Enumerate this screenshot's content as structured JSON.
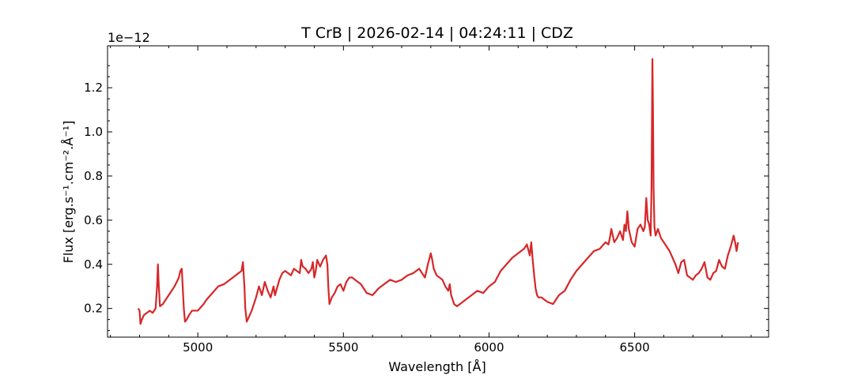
{
  "chart_data": {
    "type": "line",
    "title": "T CrB | 2026-02-14 | 04:24:11 | CDZ",
    "xlabel": "Wavelength [Å]",
    "ylabel": "Flux [erg.s⁻¹.cm⁻².Å⁻¹]",
    "y_offset_label": "1e−12",
    "y_scale": 1e-12,
    "xlim": [
      4690,
      6960
    ],
    "ylim": [
      0.07,
      1.39
    ],
    "xticks": [
      5000,
      5500,
      6000,
      6500
    ],
    "xtick_labels": [
      "5000",
      "5500",
      "6000",
      "6500"
    ],
    "yticks": [
      0.2,
      0.4,
      0.6,
      0.8,
      1.0,
      1.2
    ],
    "ytick_labels": [
      "0.2",
      "0.4",
      "0.6",
      "0.8",
      "1.0",
      "1.2"
    ],
    "grid": false,
    "series": [
      {
        "color": "#d62728",
        "x": [
          4795,
          4800,
          4803,
          4808,
          4815,
          4825,
          4835,
          4845,
          4855,
          4860,
          4863,
          4866,
          4870,
          4880,
          4900,
          4920,
          4935,
          4940,
          4945,
          4948,
          4952,
          4956,
          4962,
          4970,
          4980,
          5000,
          5020,
          5030,
          5050,
          5070,
          5090,
          5110,
          5130,
          5140,
          5150,
          5155,
          5160,
          5163,
          5168,
          5175,
          5185,
          5200,
          5210,
          5220,
          5230,
          5240,
          5250,
          5260,
          5265,
          5280,
          5290,
          5300,
          5310,
          5320,
          5330,
          5340,
          5350,
          5355,
          5360,
          5370,
          5380,
          5390,
          5395,
          5400,
          5405,
          5410,
          5420,
          5430,
          5440,
          5445,
          5448,
          5452,
          5460,
          5470,
          5480,
          5490,
          5500,
          5510,
          5520,
          5530,
          5540,
          5560,
          5580,
          5600,
          5620,
          5640,
          5660,
          5680,
          5700,
          5720,
          5740,
          5760,
          5780,
          5790,
          5800,
          5805,
          5810,
          5820,
          5830,
          5840,
          5850,
          5860,
          5865,
          5870,
          5880,
          5890,
          5900,
          5920,
          5940,
          5960,
          5980,
          6000,
          6020,
          6040,
          6060,
          6080,
          6100,
          6120,
          6130,
          6140,
          6145,
          6150,
          6155,
          6160,
          6165,
          6170,
          6180,
          6190,
          6200,
          6220,
          6240,
          6260,
          6280,
          6300,
          6320,
          6340,
          6360,
          6380,
          6400,
          6410,
          6415,
          6420,
          6430,
          6440,
          6450,
          6460,
          6465,
          6470,
          6475,
          6480,
          6490,
          6500,
          6510,
          6520,
          6530,
          6535,
          6540,
          6545,
          6550,
          6555,
          6558,
          6561,
          6563,
          6565,
          6568,
          6572,
          6580,
          6590,
          6600,
          6620,
          6640,
          6650,
          6660,
          6670,
          6680,
          6690,
          6700,
          6710,
          6720,
          6730,
          6740,
          6750,
          6760,
          6770,
          6780,
          6790,
          6800,
          6810,
          6820,
          6830,
          6840,
          6845,
          6850,
          6855
        ],
        "y": [
          0.2,
          0.19,
          0.13,
          0.15,
          0.17,
          0.18,
          0.19,
          0.18,
          0.2,
          0.3,
          0.4,
          0.3,
          0.21,
          0.22,
          0.26,
          0.3,
          0.34,
          0.37,
          0.38,
          0.3,
          0.2,
          0.14,
          0.15,
          0.17,
          0.19,
          0.19,
          0.22,
          0.24,
          0.27,
          0.3,
          0.31,
          0.33,
          0.35,
          0.36,
          0.37,
          0.41,
          0.3,
          0.2,
          0.14,
          0.16,
          0.19,
          0.25,
          0.3,
          0.26,
          0.32,
          0.28,
          0.25,
          0.3,
          0.26,
          0.33,
          0.36,
          0.37,
          0.36,
          0.35,
          0.38,
          0.37,
          0.36,
          0.42,
          0.39,
          0.38,
          0.36,
          0.38,
          0.41,
          0.34,
          0.37,
          0.42,
          0.39,
          0.42,
          0.44,
          0.4,
          0.3,
          0.22,
          0.25,
          0.27,
          0.3,
          0.31,
          0.28,
          0.32,
          0.34,
          0.34,
          0.33,
          0.31,
          0.27,
          0.26,
          0.29,
          0.31,
          0.33,
          0.32,
          0.33,
          0.35,
          0.36,
          0.38,
          0.34,
          0.4,
          0.45,
          0.42,
          0.38,
          0.35,
          0.34,
          0.33,
          0.3,
          0.28,
          0.31,
          0.26,
          0.22,
          0.21,
          0.22,
          0.24,
          0.26,
          0.28,
          0.27,
          0.3,
          0.32,
          0.37,
          0.4,
          0.43,
          0.45,
          0.47,
          0.49,
          0.44,
          0.5,
          0.42,
          0.35,
          0.29,
          0.26,
          0.25,
          0.25,
          0.24,
          0.23,
          0.22,
          0.26,
          0.28,
          0.33,
          0.37,
          0.4,
          0.43,
          0.46,
          0.47,
          0.5,
          0.49,
          0.52,
          0.56,
          0.5,
          0.52,
          0.55,
          0.51,
          0.58,
          0.55,
          0.64,
          0.56,
          0.5,
          0.48,
          0.56,
          0.58,
          0.55,
          0.57,
          0.7,
          0.6,
          0.58,
          0.53,
          0.75,
          1.33,
          1.1,
          0.75,
          0.57,
          0.53,
          0.56,
          0.52,
          0.5,
          0.46,
          0.4,
          0.36,
          0.41,
          0.42,
          0.35,
          0.34,
          0.33,
          0.35,
          0.36,
          0.38,
          0.41,
          0.34,
          0.33,
          0.36,
          0.37,
          0.42,
          0.39,
          0.38,
          0.44,
          0.48,
          0.53,
          0.5,
          0.46,
          0.5
        ]
      }
    ]
  }
}
